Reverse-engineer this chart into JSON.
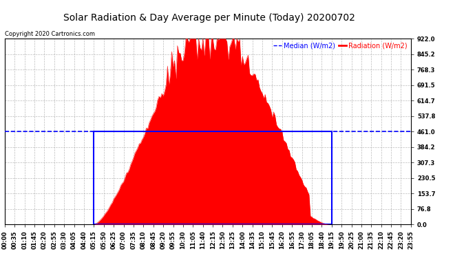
{
  "title": "Solar Radiation & Day Average per Minute (Today) 20200702",
  "copyright": "Copyright 2020 Cartronics.com",
  "legend_median": "Median (W/m2)",
  "legend_radiation": "Radiation (W/m2)",
  "ylim": [
    0.0,
    922.0
  ],
  "yticks": [
    0.0,
    76.8,
    153.7,
    230.5,
    307.3,
    384.2,
    461.0,
    537.8,
    614.7,
    691.5,
    768.3,
    845.2,
    922.0
  ],
  "ytick_labels": [
    "0.0",
    "76.8",
    "153.7",
    "230.5",
    "307.3",
    "384.2",
    "461.0",
    "537.8",
    "614.7",
    "691.5",
    "768.3",
    "845.2",
    "922.0"
  ],
  "median_value": 461.0,
  "sunrise_index": 63,
  "sunset_index": 231,
  "peak_value": 922.0,
  "background_color": "#ffffff",
  "radiation_color": "#ff0000",
  "median_color": "#0000ff",
  "rect_color": "#0000ff",
  "grid_color": "#aaaaaa",
  "title_fontsize": 10,
  "tick_fontsize": 6,
  "copyright_fontsize": 6,
  "legend_fontsize": 7
}
